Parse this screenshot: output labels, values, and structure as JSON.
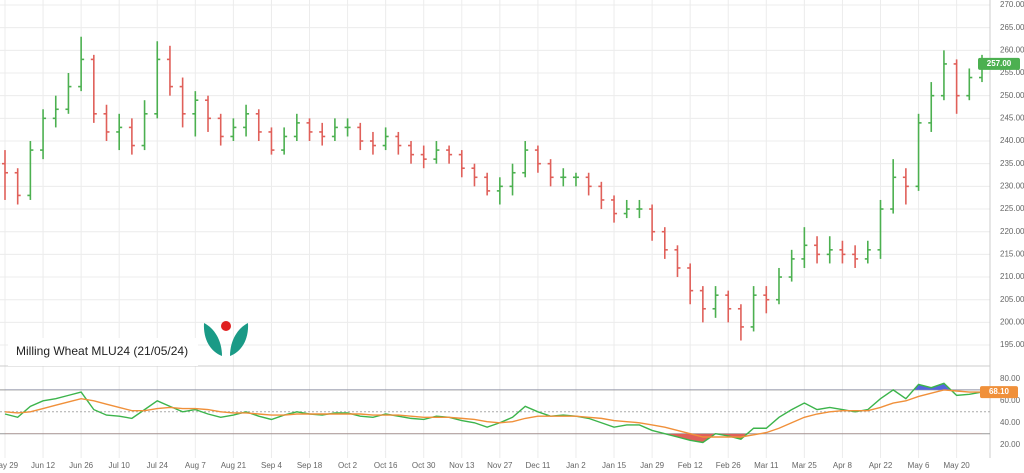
{
  "chart_data": [
    {
      "type": "ohlc",
      "title": "Milling Wheat  MLU24 (21/05/24)",
      "last_price_label": "257.00",
      "up_color": "#4cb050",
      "down_color": "#e0605a",
      "grid": true,
      "categories": [
        "May 29",
        null,
        null,
        "Jun 12",
        null,
        null,
        "Jun 26",
        null,
        null,
        "Jul 10",
        null,
        null,
        "Jul 24",
        null,
        null,
        "Aug 7",
        null,
        null,
        "Aug 21",
        null,
        null,
        "Sep 4",
        null,
        null,
        "Sep 18",
        null,
        null,
        "Oct 2",
        null,
        null,
        "Oct 16",
        null,
        null,
        "Oct 30",
        null,
        null,
        "Nov 13",
        null,
        null,
        "Nov 27",
        null,
        null,
        "Dec 11",
        null,
        null,
        "Jan 2",
        null,
        null,
        "Jan 15",
        null,
        null,
        "Jan 29",
        null,
        null,
        "Feb 12",
        null,
        null,
        "Feb 26",
        null,
        null,
        "Mar 11",
        null,
        null,
        "Mar 25",
        null,
        null,
        "Apr 8",
        null,
        null,
        "Apr 22",
        null,
        null,
        "May 6",
        null,
        null,
        "May 20",
        null,
        null
      ],
      "open": [
        235,
        233,
        228,
        238,
        245,
        247,
        252,
        258,
        246,
        242,
        243,
        239,
        246,
        258,
        252,
        246,
        249,
        245,
        241,
        243,
        246,
        242,
        238,
        241,
        244,
        242,
        241,
        243,
        243,
        240,
        239,
        241,
        239,
        237,
        236,
        238,
        237,
        234,
        232,
        229,
        230,
        233,
        238,
        235,
        232,
        232,
        232,
        230,
        227,
        224,
        225,
        225,
        220,
        216,
        212,
        207,
        203,
        206,
        203,
        199,
        206,
        205,
        210,
        214,
        217,
        215,
        216,
        215,
        214,
        216,
        225,
        232,
        230,
        244,
        250,
        257,
        250,
        254
      ],
      "high": [
        238,
        234,
        240,
        247,
        250,
        255,
        263,
        259,
        248,
        246,
        245,
        249,
        262,
        261,
        254,
        251,
        250,
        246,
        245,
        248,
        247,
        243,
        243,
        246,
        245,
        244,
        245,
        245,
        244,
        242,
        243,
        242,
        240,
        239,
        240,
        239,
        238,
        235,
        233,
        232,
        235,
        240,
        239,
        236,
        234,
        233,
        233,
        231,
        228,
        227,
        227,
        226,
        221,
        217,
        213,
        208,
        208,
        207,
        204,
        208,
        208,
        212,
        216,
        221,
        219,
        219,
        218,
        217,
        218,
        227,
        236,
        234,
        246,
        253,
        260,
        258,
        256,
        259
      ],
      "low": [
        227,
        226,
        227,
        236,
        243,
        246,
        251,
        244,
        240,
        238,
        237,
        238,
        245,
        250,
        243,
        241,
        242,
        239,
        240,
        241,
        240,
        237,
        237,
        240,
        240,
        239,
        240,
        241,
        238,
        237,
        238,
        237,
        235,
        234,
        235,
        235,
        232,
        230,
        228,
        226,
        228,
        232,
        233,
        230,
        230,
        230,
        228,
        225,
        222,
        223,
        223,
        218,
        214,
        210,
        204,
        200,
        201,
        200,
        196,
        198,
        202,
        204,
        209,
        212,
        213,
        213,
        213,
        212,
        213,
        214,
        224,
        226,
        229,
        242,
        249,
        246,
        249,
        253
      ],
      "close": [
        233,
        228,
        238,
        245,
        247,
        252,
        258,
        246,
        242,
        243,
        239,
        246,
        258,
        252,
        246,
        249,
        245,
        241,
        243,
        246,
        242,
        238,
        241,
        244,
        242,
        241,
        243,
        243,
        240,
        239,
        241,
        239,
        237,
        236,
        238,
        237,
        234,
        232,
        229,
        230,
        233,
        238,
        235,
        232,
        232,
        232,
        230,
        227,
        224,
        225,
        225,
        220,
        216,
        212,
        207,
        203,
        206,
        203,
        199,
        206,
        205,
        210,
        214,
        217,
        215,
        216,
        215,
        214,
        216,
        225,
        232,
        230,
        244,
        250,
        257,
        250,
        254,
        257
      ],
      "ylim": [
        190.6,
        271.1
      ],
      "yticks": [
        {
          "value": 195,
          "label": "195.00"
        },
        {
          "value": 200,
          "label": "200.00"
        },
        {
          "value": 205,
          "label": "205.00"
        },
        {
          "value": 210,
          "label": "210.00"
        },
        {
          "value": 215,
          "label": "215.00"
        },
        {
          "value": 220,
          "label": "220.00"
        },
        {
          "value": 225,
          "label": "225.00"
        },
        {
          "value": 230,
          "label": "230.00"
        },
        {
          "value": 235,
          "label": "235.00"
        },
        {
          "value": 240,
          "label": "240.00"
        },
        {
          "value": 245,
          "label": "245.00"
        },
        {
          "value": 250,
          "label": "250.00"
        },
        {
          "value": 255,
          "label": "255.00"
        },
        {
          "value": 260,
          "label": "260.00"
        },
        {
          "value": 265,
          "label": "265.00"
        },
        {
          "value": 270,
          "label": "270.00"
        }
      ]
    },
    {
      "type": "line",
      "last_value_label": "68.10",
      "upper_level": 70,
      "mid_level": 50,
      "lower_level": 30,
      "upper_fill": "#5566dd",
      "lower_fill": "#e0605a",
      "series": [
        {
          "color": "#3cb44b",
          "values": [
            48,
            45,
            55,
            60,
            62,
            65,
            68,
            52,
            47,
            46,
            44,
            52,
            60,
            55,
            50,
            52,
            48,
            45,
            47,
            50,
            46,
            43,
            47,
            50,
            48,
            47,
            49,
            49,
            46,
            45,
            48,
            46,
            44,
            43,
            46,
            45,
            42,
            40,
            36,
            40,
            45,
            55,
            50,
            46,
            47,
            46,
            44,
            40,
            36,
            38,
            38,
            33,
            30,
            27,
            24,
            22,
            30,
            28,
            25,
            35,
            35,
            45,
            52,
            58,
            52,
            54,
            52,
            50,
            52,
            62,
            70,
            62,
            75,
            72,
            76,
            65,
            66,
            68
          ]
        },
        {
          "color": "#f0903a",
          "values": [
            50,
            49,
            50,
            53,
            56,
            59,
            62,
            60,
            57,
            54,
            51,
            51,
            53,
            54,
            53,
            53,
            52,
            50,
            49,
            49,
            48,
            47,
            47,
            48,
            48,
            48,
            48,
            48,
            48,
            47,
            47,
            47,
            46,
            45,
            45,
            45,
            44,
            43,
            41,
            40,
            41,
            44,
            46,
            46,
            46,
            46,
            45,
            44,
            42,
            41,
            40,
            38,
            36,
            33,
            30,
            27,
            27,
            27,
            27,
            29,
            31,
            35,
            40,
            45,
            48,
            50,
            51,
            51,
            51,
            54,
            58,
            60,
            64,
            67,
            70,
            69,
            68,
            68
          ]
        }
      ],
      "ylim": [
        6,
        90
      ],
      "yticks": [
        {
          "value": 20,
          "label": "20.00"
        },
        {
          "value": 40,
          "label": "40.00"
        },
        {
          "value": 60,
          "label": "60.00"
        },
        {
          "value": 80,
          "label": "80.00"
        }
      ]
    }
  ]
}
